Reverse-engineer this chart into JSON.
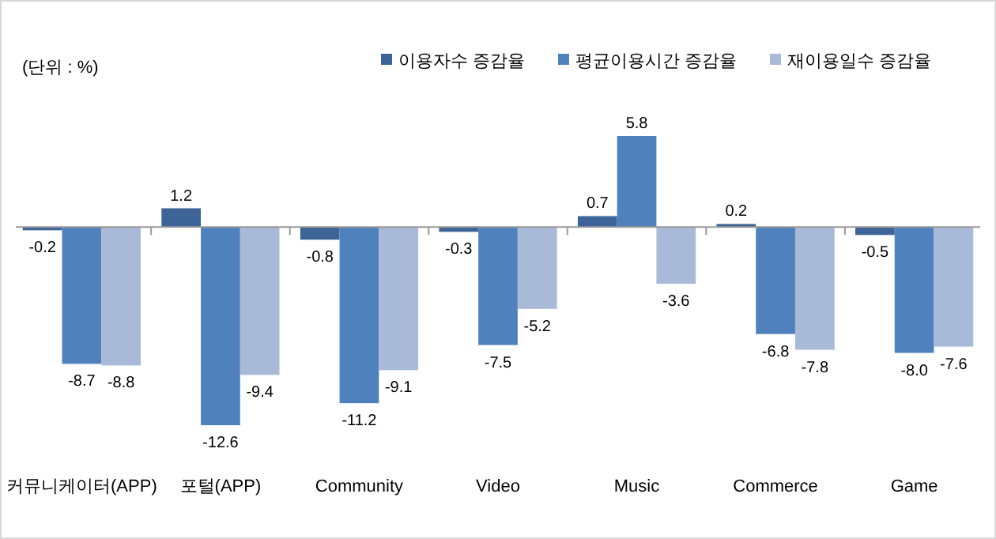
{
  "chart_data": {
    "type": "bar",
    "ylabel": "(단위 : %)",
    "categories": [
      "커뮤니케이터(APP)",
      "포털(APP)",
      "Community",
      "Video",
      "Music",
      "Commerce",
      "Game"
    ],
    "series": [
      {
        "name": "이용자수 증감율",
        "color": "#3d6496",
        "values": [
          -0.2,
          1.2,
          -0.8,
          -0.3,
          0.7,
          0.2,
          -0.5
        ],
        "value_labels": [
          "-0.2",
          "1.2",
          "-0.8",
          "-0.3",
          "0.7",
          "0.2",
          "-0.5"
        ]
      },
      {
        "name": "평균이용시간 증감율",
        "color": "#4f81bd",
        "values": [
          -8.7,
          -12.6,
          -11.2,
          -7.5,
          5.8,
          -6.8,
          -8.0
        ],
        "value_labels": [
          "-8.7",
          "-12.6",
          "-11.2",
          "-7.5",
          "5.8",
          "-6.8",
          "-8.0"
        ]
      },
      {
        "name": "재이용일수 증감율",
        "color": "#a9b9d8",
        "values": [
          -8.8,
          -9.4,
          -9.1,
          -5.2,
          -3.6,
          -7.8,
          -7.6
        ],
        "value_labels": [
          "-8.8",
          "-9.4",
          "-9.1",
          "-5.2",
          "-3.6",
          "-7.8",
          "-7.6"
        ]
      }
    ],
    "legend": "top right",
    "grid": false
  }
}
